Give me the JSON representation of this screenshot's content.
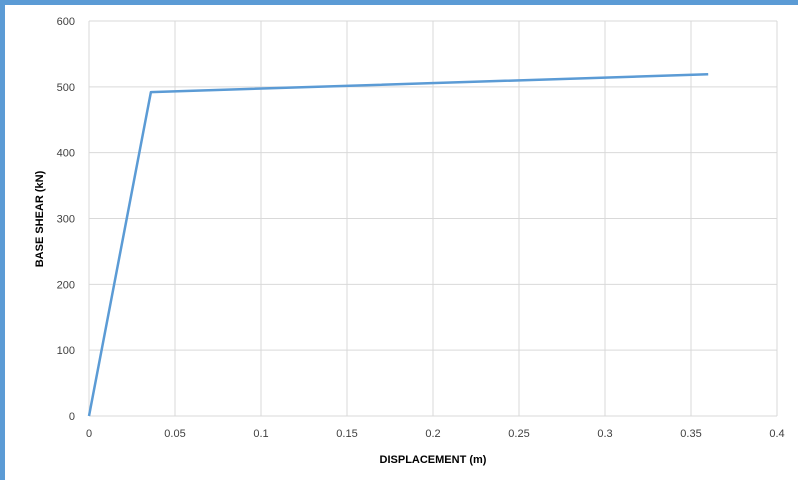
{
  "chart_data": {
    "type": "line",
    "title": "",
    "xlabel": "DISPLACEMENT (m)",
    "ylabel": "BASE SHEAR (kN)",
    "xlim": [
      0,
      0.4
    ],
    "ylim": [
      0,
      600
    ],
    "x_ticks": [
      0,
      0.05,
      0.1,
      0.15,
      0.2,
      0.25,
      0.3,
      0.35,
      0.4
    ],
    "y_ticks": [
      0,
      100,
      200,
      300,
      400,
      500,
      600
    ],
    "x_tick_labels": [
      "0",
      "0.05",
      "0.1",
      "0.15",
      "0.2",
      "0.25",
      "0.3",
      "0.35",
      "0.4"
    ],
    "y_tick_labels": [
      "0",
      "100",
      "200",
      "300",
      "400",
      "500",
      "600"
    ],
    "grid": true,
    "legend": "none",
    "series": [
      {
        "color": "#5b9bd5",
        "x": [
          0,
          0.036,
          0.36
        ],
        "y": [
          0,
          492,
          519
        ]
      }
    ]
  },
  "colors": {
    "frame": "#5b9bd5",
    "grid": "#d9d9d9",
    "line": "#5b9bd5"
  }
}
